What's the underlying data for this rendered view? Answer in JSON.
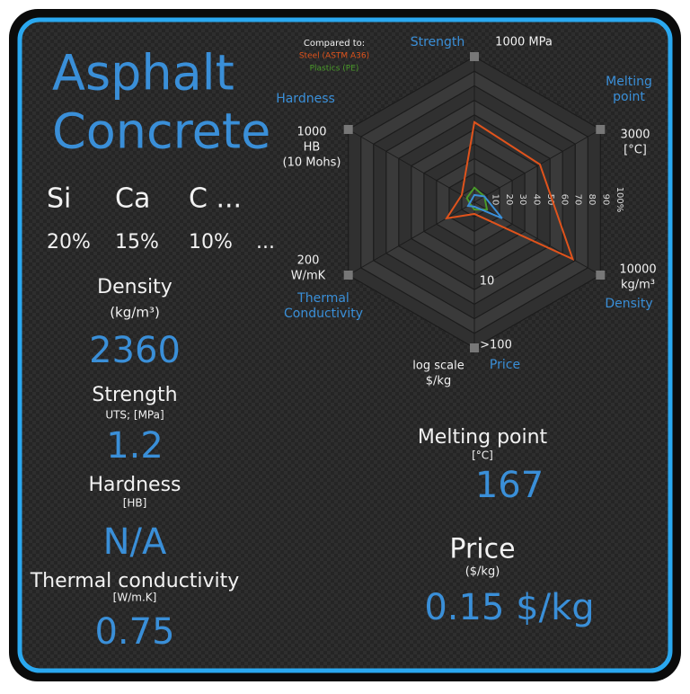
{
  "title": [
    "Asphalt",
    "Concrete"
  ],
  "composition": {
    "elements": [
      "Si",
      "Ca",
      "C ..."
    ],
    "fractions": [
      "20%",
      "15%",
      "10%",
      "..."
    ]
  },
  "properties_left": [
    {
      "name": "Density",
      "unit": "(kg/m³)",
      "value": "2360"
    },
    {
      "name": "Strength",
      "unit": "UTS; [MPa]",
      "value": "1.2"
    },
    {
      "name": "Hardness",
      "unit": "[HB]",
      "value": "N/A"
    },
    {
      "name": "Thermal conductivity",
      "unit": "[W/m.K]",
      "value": "0.75"
    }
  ],
  "properties_right": [
    {
      "name": "Melting point",
      "unit": "[°C]",
      "value": "167"
    },
    {
      "name": "Price",
      "unit": "($/kg)",
      "value": "0.15 $/kg"
    }
  ],
  "chart_data": {
    "type": "radar",
    "legend_title": "Compared to:",
    "axes": [
      {
        "name": [
          "Strength"
        ],
        "max_label": [
          "1000 MPa"
        ]
      },
      {
        "name": [
          "Melting",
          "point"
        ],
        "max_label": [
          "3000",
          "[°C]"
        ]
      },
      {
        "name": [
          "Density"
        ],
        "max_label": [
          "10000",
          "kg/m³"
        ]
      },
      {
        "name": [
          "Price"
        ],
        "max_label": [
          ">100"
        ]
      },
      {
        "name": [
          "Thermal",
          "Conductivity"
        ],
        "max_label": [
          "200",
          "W/mK"
        ]
      },
      {
        "name": [
          "Hardness"
        ],
        "max_label": [
          "1000",
          "HB",
          "(10 Mohs)"
        ]
      }
    ],
    "rlim": [
      0,
      100
    ],
    "rticks": [
      10,
      20,
      30,
      40,
      50,
      60,
      70,
      80,
      90,
      {
        "value": 100,
        "label": "100%"
      }
    ],
    "price_scale": [
      "log scale",
      "$/kg"
    ],
    "price_mid_tick": "10",
    "series": [
      {
        "name": "Steel (ASTM A36)",
        "color": "#e0531c",
        "values": [
          55,
          52,
          78,
          8,
          22,
          10
        ]
      },
      {
        "name": "Plastics (PE)",
        "color": "#4a9a2a",
        "values": [
          10,
          8,
          10,
          5,
          3,
          6
        ]
      },
      {
        "color": "#3a8fd8",
        "values": [
          5,
          8,
          22,
          3,
          5,
          null
        ]
      }
    ]
  }
}
